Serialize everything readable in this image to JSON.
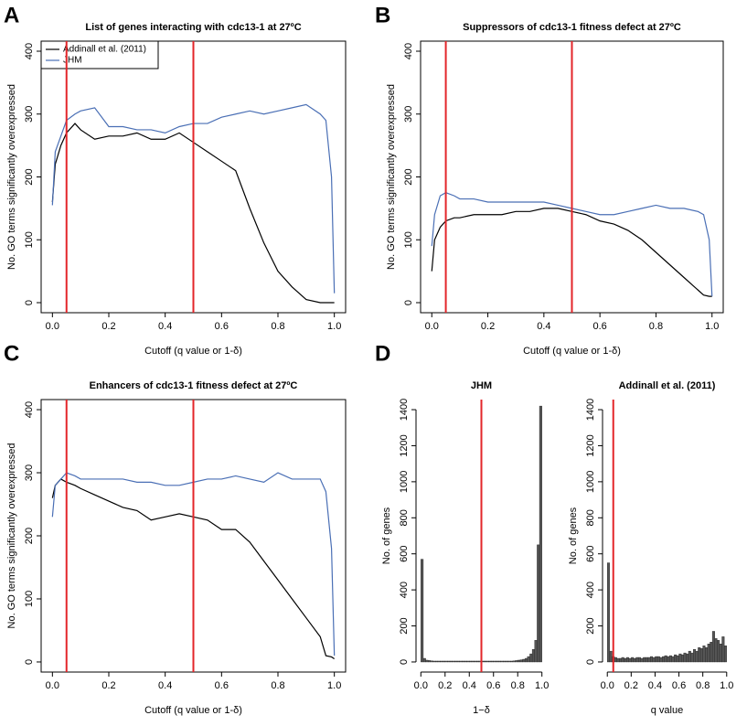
{
  "chart_data": [
    {
      "type": "line",
      "panel_label": "A",
      "title": "List of genes interacting with cdc13-1 at 27ºC",
      "xlabel": "Cutoff (q value or 1-δ)",
      "ylabel": "No. GO terms significantly overexpressed",
      "x": [
        0,
        0.01,
        0.03,
        0.05,
        0.08,
        0.1,
        0.15,
        0.2,
        0.25,
        0.3,
        0.35,
        0.4,
        0.45,
        0.5,
        0.55,
        0.6,
        0.65,
        0.7,
        0.75,
        0.8,
        0.85,
        0.9,
        0.95,
        0.97,
        0.99,
        1.0
      ],
      "series": [
        {
          "name": "Addinall et al. (2011)",
          "color": "#000000",
          "values": [
            160,
            220,
            250,
            270,
            285,
            275,
            260,
            265,
            265,
            270,
            260,
            260,
            270,
            255,
            240,
            225,
            210,
            150,
            95,
            50,
            25,
            5,
            0,
            0,
            0,
            0
          ]
        },
        {
          "name": "JHM",
          "color": "#4a6fb5",
          "values": [
            155,
            240,
            265,
            290,
            300,
            305,
            310,
            280,
            280,
            275,
            275,
            270,
            280,
            285,
            285,
            295,
            300,
            305,
            300,
            305,
            310,
            315,
            300,
            290,
            200,
            15
          ]
        }
      ],
      "legend": "top-left",
      "vlines": [
        0.05,
        0.5
      ],
      "vline_color": "#e3262a",
      "xlim": [
        -0.04,
        1.04
      ],
      "ylim": [
        -16,
        416
      ],
      "xticks": [
        {
          "value": 0,
          "label": "0.0"
        },
        0.2,
        0.4,
        0.6,
        0.8,
        {
          "value": 1,
          "label": "1.0"
        }
      ],
      "yticks": [
        0,
        100,
        200,
        300,
        400
      ]
    },
    {
      "type": "line",
      "panel_label": "B",
      "title": "Suppressors of cdc13-1 fitness defect at 27ºC",
      "xlabel": "Cutoff (q value or 1-δ)",
      "ylabel": "No. GO terms significantly overexpressed",
      "x": [
        0,
        0.01,
        0.03,
        0.05,
        0.08,
        0.1,
        0.15,
        0.2,
        0.25,
        0.3,
        0.35,
        0.4,
        0.45,
        0.5,
        0.55,
        0.6,
        0.65,
        0.7,
        0.75,
        0.8,
        0.85,
        0.9,
        0.95,
        0.97,
        0.99,
        1.0
      ],
      "series": [
        {
          "name": "Addinall et al. (2011)",
          "color": "#000000",
          "values": [
            50,
            100,
            120,
            130,
            135,
            135,
            140,
            140,
            140,
            145,
            145,
            150,
            150,
            145,
            140,
            130,
            125,
            115,
            100,
            80,
            60,
            40,
            20,
            12,
            10,
            10
          ]
        },
        {
          "name": "JHM",
          "color": "#4a6fb5",
          "values": [
            90,
            140,
            170,
            175,
            170,
            165,
            165,
            160,
            160,
            160,
            160,
            160,
            155,
            150,
            145,
            140,
            140,
            145,
            150,
            155,
            150,
            150,
            145,
            140,
            100,
            10
          ]
        }
      ],
      "vlines": [
        0.05,
        0.5
      ],
      "vline_color": "#e3262a",
      "xlim": [
        -0.04,
        1.04
      ],
      "ylim": [
        -16,
        416
      ],
      "xticks": [
        {
          "value": 0,
          "label": "0.0"
        },
        0.2,
        0.4,
        0.6,
        0.8,
        {
          "value": 1,
          "label": "1.0"
        }
      ],
      "yticks": [
        0,
        100,
        200,
        300,
        400
      ]
    },
    {
      "type": "line",
      "panel_label": "C",
      "title": "Enhancers of cdc13-1 fitness defect at 27ºC",
      "xlabel": "Cutoff (q value or 1-δ)",
      "ylabel": "No. GO terms significantly overexpressed",
      "x": [
        0,
        0.01,
        0.03,
        0.05,
        0.08,
        0.1,
        0.15,
        0.2,
        0.25,
        0.3,
        0.35,
        0.4,
        0.45,
        0.5,
        0.55,
        0.6,
        0.65,
        0.7,
        0.75,
        0.8,
        0.85,
        0.9,
        0.95,
        0.97,
        0.99,
        1.0
      ],
      "series": [
        {
          "name": "Addinall et al. (2011)",
          "color": "#000000",
          "values": [
            260,
            280,
            290,
            285,
            280,
            275,
            265,
            255,
            245,
            240,
            225,
            230,
            235,
            230,
            225,
            210,
            210,
            190,
            160,
            130,
            100,
            70,
            40,
            10,
            8,
            5
          ]
        },
        {
          "name": "JHM",
          "color": "#4a6fb5",
          "values": [
            230,
            280,
            290,
            300,
            295,
            290,
            290,
            290,
            290,
            285,
            285,
            280,
            280,
            285,
            290,
            290,
            295,
            290,
            285,
            300,
            290,
            290,
            290,
            270,
            180,
            10
          ]
        }
      ],
      "vlines": [
        0.05,
        0.5
      ],
      "vline_color": "#e3262a",
      "xlim": [
        -0.04,
        1.04
      ],
      "ylim": [
        -16,
        416
      ],
      "xticks": [
        {
          "value": 0,
          "label": "0.0"
        },
        0.2,
        0.4,
        0.6,
        0.8,
        {
          "value": 1,
          "label": "1.0"
        }
      ],
      "yticks": [
        0,
        100,
        200,
        300,
        400
      ]
    },
    {
      "type": "histogram",
      "panel_label": "D",
      "title": "JHM",
      "xlabel": "1−δ",
      "ylabel": "No. of genes",
      "color": "#555555",
      "bins": [
        0,
        0.02,
        0.04,
        0.06,
        0.08,
        0.1,
        0.12,
        0.14,
        0.16,
        0.18,
        0.2,
        0.22,
        0.24,
        0.26,
        0.28,
        0.3,
        0.32,
        0.34,
        0.36,
        0.38,
        0.4,
        0.42,
        0.44,
        0.46,
        0.48,
        0.5,
        0.52,
        0.54,
        0.56,
        0.58,
        0.6,
        0.62,
        0.64,
        0.66,
        0.68,
        0.7,
        0.72,
        0.74,
        0.76,
        0.78,
        0.8,
        0.82,
        0.84,
        0.86,
        0.88,
        0.9,
        0.92,
        0.94,
        0.96,
        0.98,
        1.0
      ],
      "counts": [
        570,
        20,
        10,
        8,
        6,
        5,
        5,
        5,
        5,
        5,
        5,
        5,
        5,
        5,
        5,
        5,
        5,
        5,
        5,
        5,
        5,
        5,
        5,
        5,
        5,
        5,
        5,
        5,
        5,
        5,
        5,
        5,
        5,
        5,
        5,
        5,
        5,
        5,
        6,
        8,
        10,
        12,
        15,
        20,
        30,
        45,
        70,
        120,
        650,
        1420
      ],
      "vlines": [
        0.5
      ],
      "vline_color": "#e3262a",
      "xlim": [
        -0.04,
        1.04
      ],
      "ylim": [
        -56,
        1456
      ],
      "xticks": [
        {
          "value": 0,
          "label": "0.0"
        },
        0.2,
        0.4,
        0.6,
        0.8,
        {
          "value": 1,
          "label": "1.0"
        }
      ],
      "yticks": [
        0,
        200,
        400,
        600,
        800,
        1000,
        1200,
        1400
      ]
    },
    {
      "type": "histogram",
      "title": "Addinall et al. (2011)",
      "xlabel": "q value",
      "ylabel": "No. of genes",
      "color": "#555555",
      "bins": [
        0,
        0.02,
        0.04,
        0.06,
        0.08,
        0.1,
        0.12,
        0.14,
        0.16,
        0.18,
        0.2,
        0.22,
        0.24,
        0.26,
        0.28,
        0.3,
        0.32,
        0.34,
        0.36,
        0.38,
        0.4,
        0.42,
        0.44,
        0.46,
        0.48,
        0.5,
        0.52,
        0.54,
        0.56,
        0.58,
        0.6,
        0.62,
        0.64,
        0.66,
        0.68,
        0.7,
        0.72,
        0.74,
        0.76,
        0.78,
        0.8,
        0.82,
        0.84,
        0.86,
        0.88,
        0.9,
        0.92,
        0.94,
        0.96,
        0.98,
        1.0
      ],
      "counts": [
        550,
        60,
        30,
        25,
        20,
        20,
        25,
        20,
        25,
        20,
        25,
        20,
        25,
        25,
        20,
        25,
        25,
        25,
        30,
        25,
        30,
        30,
        25,
        30,
        35,
        30,
        35,
        30,
        40,
        35,
        45,
        40,
        50,
        45,
        60,
        50,
        70,
        60,
        80,
        75,
        90,
        80,
        100,
        110,
        170,
        130,
        120,
        100,
        140,
        90
      ],
      "vlines": [
        0.05
      ],
      "vline_color": "#e3262a",
      "xlim": [
        -0.04,
        1.04
      ],
      "ylim": [
        -56,
        1456
      ],
      "xticks": [
        {
          "value": 0,
          "label": "0.0"
        },
        0.2,
        0.4,
        0.6,
        0.8,
        {
          "value": 1,
          "label": "1.0"
        }
      ],
      "yticks": [
        0,
        200,
        400,
        600,
        800,
        1000,
        1200,
        1400
      ]
    }
  ]
}
